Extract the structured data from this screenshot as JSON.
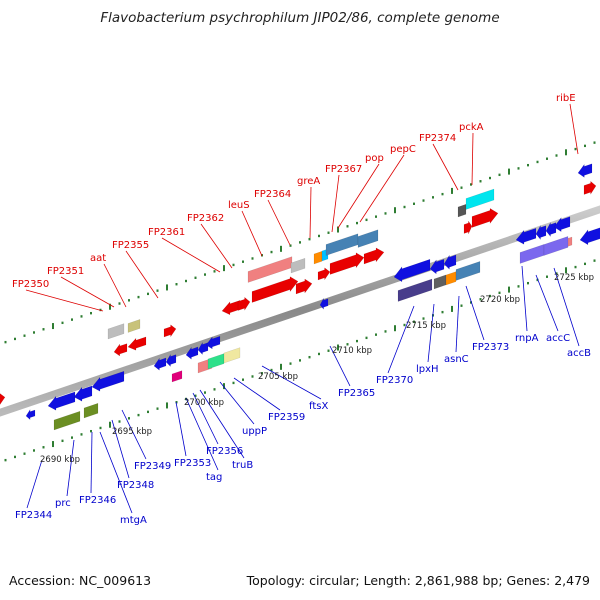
{
  "title": "Flavobacterium psychrophilum JIP02/86, complete genome",
  "footer": {
    "accession": "Accession: NC_009613",
    "summary": "Topology: circular; Length: 2,861,988 bp; Genes: 2,479"
  },
  "colors": {
    "top_strand_label": "#dd0000",
    "bottom_strand_label": "#0000cc",
    "backbone": "#999999",
    "tick_dots": "#2e7d32"
  },
  "scale_labels": [
    "2690 kbp",
    "2695 kbp",
    "2700 kbp",
    "2705 kbp",
    "2710 kbp",
    "2715 kbp",
    "2720 kbp",
    "2725 kbp"
  ],
  "top_strand_genes": [
    "FP2350",
    "FP2351",
    "aat",
    "FP2355",
    "FP2361",
    "FP2362",
    "leuS",
    "FP2364",
    "greA",
    "FP2367",
    "pop",
    "pepC",
    "FP2374",
    "pckA",
    "ribE"
  ],
  "bottom_strand_genes": [
    "FP2344",
    "prc",
    "FP2346",
    "mtgA",
    "FP2348",
    "FP2349",
    "FP2353",
    "tag",
    "FP2356",
    "truB",
    "uppP",
    "FP2359",
    "ftsX",
    "FP2365",
    "FP2370",
    "lpxH",
    "asnC",
    "FP2373",
    "rnpA",
    "accC",
    "accB"
  ]
}
